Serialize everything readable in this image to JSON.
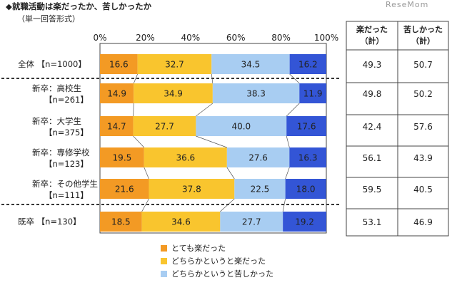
{
  "header": {
    "title": "◆就職活動は楽だったか、苦しかったか",
    "subtitle": "（単一回答形式）",
    "watermark": "ReseMom"
  },
  "legend": {
    "items": [
      {
        "label": "とても楽だった",
        "color": "#f39a24"
      },
      {
        "label": "どちらかというと楽だった",
        "color": "#f9c52e"
      },
      {
        "label": "どちらかというと苦しかった",
        "color": "#a8cdf2"
      }
    ]
  },
  "chart_data": {
    "type": "bar",
    "orientation": "horizontal",
    "stacked": true,
    "xlim": [
      0,
      100
    ],
    "tick_labels": [
      "0%",
      "20%",
      "40%",
      "60%",
      "80%",
      "100%"
    ],
    "tick_values": [
      0,
      20,
      40,
      60,
      80,
      100
    ],
    "categories": [
      [
        "全体 【n=1000】"
      ],
      [
        "新卒：高校生",
        "【n=261】"
      ],
      [
        "新卒：大学生",
        "【n=375】"
      ],
      [
        "新卒：専修学校",
        "【n=123】"
      ],
      [
        "新卒：その他学生",
        "【n=111】"
      ],
      [
        "既卒 【n=130】"
      ]
    ],
    "series": [
      {
        "name": "とても楽だった",
        "color": "#f39a24",
        "values": [
          16.6,
          14.9,
          14.7,
          19.5,
          21.6,
          18.5
        ]
      },
      {
        "name": "どちらかというと楽だった",
        "color": "#f9c52e",
        "values": [
          32.7,
          34.9,
          27.7,
          36.6,
          37.8,
          34.6
        ]
      },
      {
        "name": "どちらかというと苦しかった",
        "color": "#a8cdf2",
        "values": [
          34.5,
          38.3,
          40.0,
          27.6,
          22.5,
          27.7
        ]
      },
      {
        "color": "#3355d6",
        "values": [
          16.2,
          11.9,
          17.6,
          16.3,
          18.0,
          19.2
        ]
      }
    ],
    "table": {
      "headers": [
        [
          "楽だった",
          "（計）"
        ],
        [
          "苦しかった",
          "（計）"
        ]
      ],
      "rows": [
        [
          "49.3",
          "50.7"
        ],
        [
          "49.8",
          "50.2"
        ],
        [
          "42.4",
          "57.6"
        ],
        [
          "56.1",
          "43.9"
        ],
        [
          "59.5",
          "40.5"
        ],
        [
          "53.1",
          "46.9"
        ]
      ]
    }
  }
}
